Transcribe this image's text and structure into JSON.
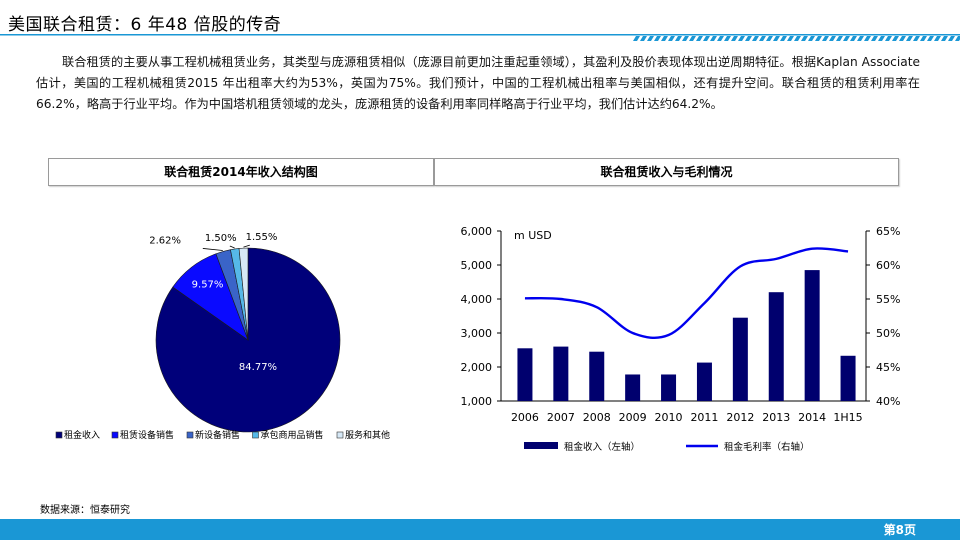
{
  "header": {
    "title": "美国联合租赁：6 年48 倍股的传奇"
  },
  "intro": {
    "text": "联合租赁的主要从事工程机械租赁业务，其类型与庞源租赁相似（庞源目前更加注重起重领域），其盈利及股价表现体现出逆周期特征。根据Kaplan Associate 估计，美国的工程机械租赁2015 年出租率大约为53%，英国为75%。我们预计，中国的工程机械出租率与美国相似，还有提升空间。联合租赁的租赁利用率在66.2%，略高于行业平均。作为中国塔机租赁领域的龙头，庞源租赁的设备利用率同样略高于行业平均，我们估计达约64.2%。"
  },
  "panels": {
    "left_title": "联合租赁2014年收入结构图",
    "right_title": "联合租赁收入与毛利情况"
  },
  "chart_data": [
    {
      "type": "pie",
      "title": "联合租赁2014年收入结构图",
      "labels": [
        "租金收入",
        "租赁设备销售",
        "新设备销售",
        "承包商用品销售",
        "服务和其他"
      ],
      "values": [
        84.77,
        9.57,
        2.62,
        1.5,
        1.55
      ],
      "value_labels": [
        "84.77%",
        "9.57%",
        "2.62%",
        "1.50%",
        "1.55%"
      ],
      "colors": [
        "#00007a",
        "#0a0aff",
        "#3a64c8",
        "#56b8e8",
        "#d6e8f6"
      ],
      "legend_position": "bottom"
    },
    {
      "type": "bar",
      "title": "联合租赁收入与毛利情况",
      "categories": [
        "2006",
        "2007",
        "2008",
        "2009",
        "2010",
        "2011",
        "2012",
        "2013",
        "2014",
        "1H15"
      ],
      "unit_label": "m USD",
      "series": [
        {
          "name": "租金收入（左轴）",
          "type": "bar",
          "axis": "left",
          "color": "#00006e",
          "values": [
            2550,
            2600,
            2450,
            1780,
            1780,
            2130,
            3450,
            4200,
            4850,
            2330
          ]
        },
        {
          "name": "租金毛利率（右轴）",
          "type": "line",
          "axis": "right",
          "color": "#0000ee",
          "values": [
            55.1,
            55.0,
            53.8,
            50.0,
            49.7,
            54.4,
            59.8,
            60.9,
            62.4,
            62.0
          ]
        }
      ],
      "y_left": {
        "min": 1000,
        "max": 6000,
        "ticks": [
          "1,000",
          "2,000",
          "3,000",
          "4,000",
          "5,000",
          "6,000"
        ]
      },
      "y_right": {
        "min": 40,
        "max": 65,
        "ticks": [
          "40%",
          "45%",
          "50%",
          "55%",
          "60%",
          "65%"
        ]
      },
      "legend_position": "bottom"
    }
  ],
  "footer": {
    "source": "数据来源：恒泰研究",
    "page": "第8页"
  },
  "colors": {
    "accent": "#1a97d5",
    "bar": "#00006e",
    "line": "#0000ee"
  }
}
